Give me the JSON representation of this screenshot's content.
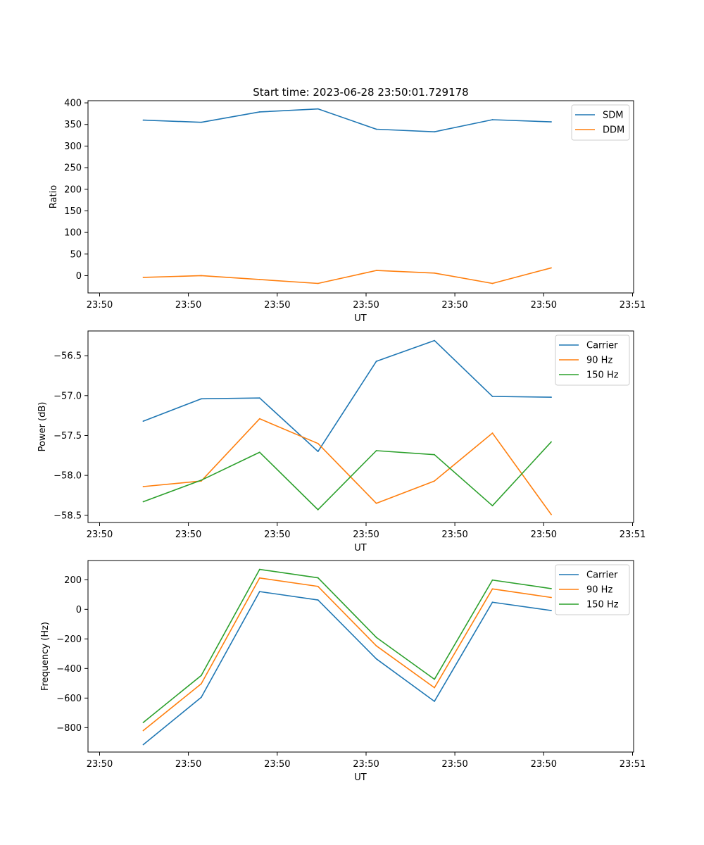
{
  "figure": {
    "title": "Start time: 2023-06-28 23:50:01.729178"
  },
  "chart_data": [
    {
      "type": "line",
      "xlabel": "UT",
      "ylabel": "Ratio",
      "x_tick_labels": [
        "23:50",
        "23:50",
        "23:50",
        "23:50",
        "23:50",
        "23:50",
        "23:51"
      ],
      "y_tick_labels": [
        "0",
        "50",
        "100",
        "150",
        "200",
        "250",
        "300",
        "350",
        "400"
      ],
      "ylim": [
        -40,
        405
      ],
      "legend_position": "top-right",
      "grid": false,
      "series": [
        {
          "name": "SDM",
          "color": "#1f77b4",
          "values": [
            360,
            355,
            379,
            386,
            339,
            333,
            361,
            356
          ]
        },
        {
          "name": "DDM",
          "color": "#ff7f0e",
          "values": [
            -4,
            0,
            -9,
            -18,
            12,
            6,
            -18,
            18
          ]
        }
      ]
    },
    {
      "type": "line",
      "xlabel": "UT",
      "ylabel": "Power (dB)",
      "x_tick_labels": [
        "23:50",
        "23:50",
        "23:50",
        "23:50",
        "23:50",
        "23:50",
        "23:51"
      ],
      "y_tick_labels": [
        "−58.5",
        "−58.0",
        "−57.5",
        "−57.0",
        "−56.5"
      ],
      "ylim": [
        -58.59,
        -56.19
      ],
      "legend_position": "top-right",
      "grid": false,
      "series": [
        {
          "name": "Carrier",
          "color": "#1f77b4",
          "values": [
            -57.32,
            -57.04,
            -57.03,
            -57.7,
            -56.57,
            -56.31,
            -57.01,
            -57.02
          ]
        },
        {
          "name": "90 Hz",
          "color": "#ff7f0e",
          "values": [
            -58.14,
            -58.07,
            -57.29,
            -57.6,
            -58.35,
            -58.07,
            -57.47,
            -58.49
          ]
        },
        {
          "name": "150 Hz",
          "color": "#2ca02c",
          "values": [
            -58.33,
            -58.06,
            -57.71,
            -58.43,
            -57.69,
            -57.74,
            -58.38,
            -57.58
          ]
        }
      ]
    },
    {
      "type": "line",
      "xlabel": "UT",
      "ylabel": "Frequency (Hz)",
      "x_tick_labels": [
        "23:50",
        "23:50",
        "23:50",
        "23:50",
        "23:50",
        "23:50",
        "23:51"
      ],
      "y_tick_labels": [
        "−800",
        "−600",
        "−400",
        "−200",
        "0",
        "200"
      ],
      "ylim": [
        -965,
        330
      ],
      "legend_position": "top-right",
      "grid": false,
      "series": [
        {
          "name": "Carrier",
          "color": "#1f77b4",
          "values": [
            -915,
            -595,
            120,
            63,
            -335,
            -622,
            48,
            -8
          ]
        },
        {
          "name": "90 Hz",
          "color": "#ff7f0e",
          "values": [
            -820,
            -503,
            212,
            155,
            -247,
            -530,
            138,
            80
          ]
        },
        {
          "name": "150 Hz",
          "color": "#2ca02c",
          "values": [
            -765,
            -447,
            270,
            213,
            -190,
            -473,
            198,
            140
          ]
        }
      ]
    }
  ]
}
